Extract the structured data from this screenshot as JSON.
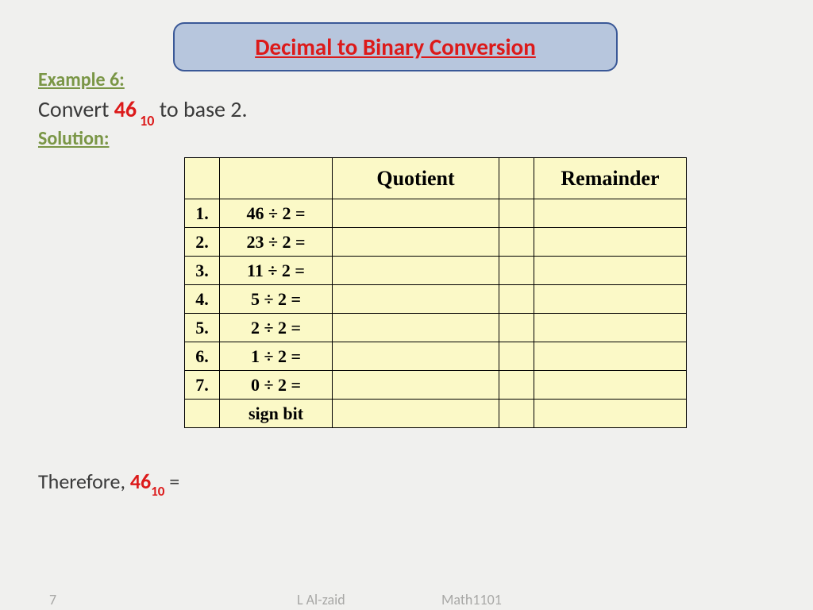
{
  "title": "Decimal to Binary Conversion",
  "example_label": "Example 6:",
  "convert": {
    "prefix": "Convert ",
    "number": "46",
    "subscript": "10",
    "suffix": " to base 2."
  },
  "solution_label": "Solution:",
  "table": {
    "headers": {
      "quotient": "Quotient",
      "remainder": "Remainder"
    },
    "rows": [
      {
        "idx": "1.",
        "expr": "46 ÷ 2 =",
        "quo": "",
        "rem": ""
      },
      {
        "idx": "2.",
        "expr": "23 ÷ 2 =",
        "quo": "",
        "rem": ""
      },
      {
        "idx": "3.",
        "expr": "11 ÷ 2 =",
        "quo": "",
        "rem": ""
      },
      {
        "idx": "4.",
        "expr": "5 ÷ 2 =",
        "quo": "",
        "rem": ""
      },
      {
        "idx": "5.",
        "expr": "2 ÷ 2 =",
        "quo": "",
        "rem": ""
      },
      {
        "idx": "6.",
        "expr": "1 ÷ 2 =",
        "quo": "",
        "rem": ""
      },
      {
        "idx": "7.",
        "expr": "0 ÷ 2 =",
        "quo": "",
        "rem": ""
      },
      {
        "idx": "",
        "expr": "sign bit",
        "quo": "",
        "rem": ""
      }
    ],
    "bg_color": "#fbf9c7",
    "border_color": "#000000"
  },
  "therefore": {
    "prefix": "Therefore, ",
    "number": "46",
    "subscript": "10",
    "suffix": " ="
  },
  "footer": {
    "page": "7",
    "author": "L Al-zaid",
    "course": "Math1101"
  },
  "colors": {
    "background": "#f0f0ee",
    "title_bg": "#b7c6dd",
    "title_border": "#3a5897",
    "title_text": "#dc1a1a",
    "label_green": "#7a9646",
    "body_text": "#3a3a3a",
    "accent_red": "#dc1a1a",
    "footer_text": "#a8a8a6"
  }
}
